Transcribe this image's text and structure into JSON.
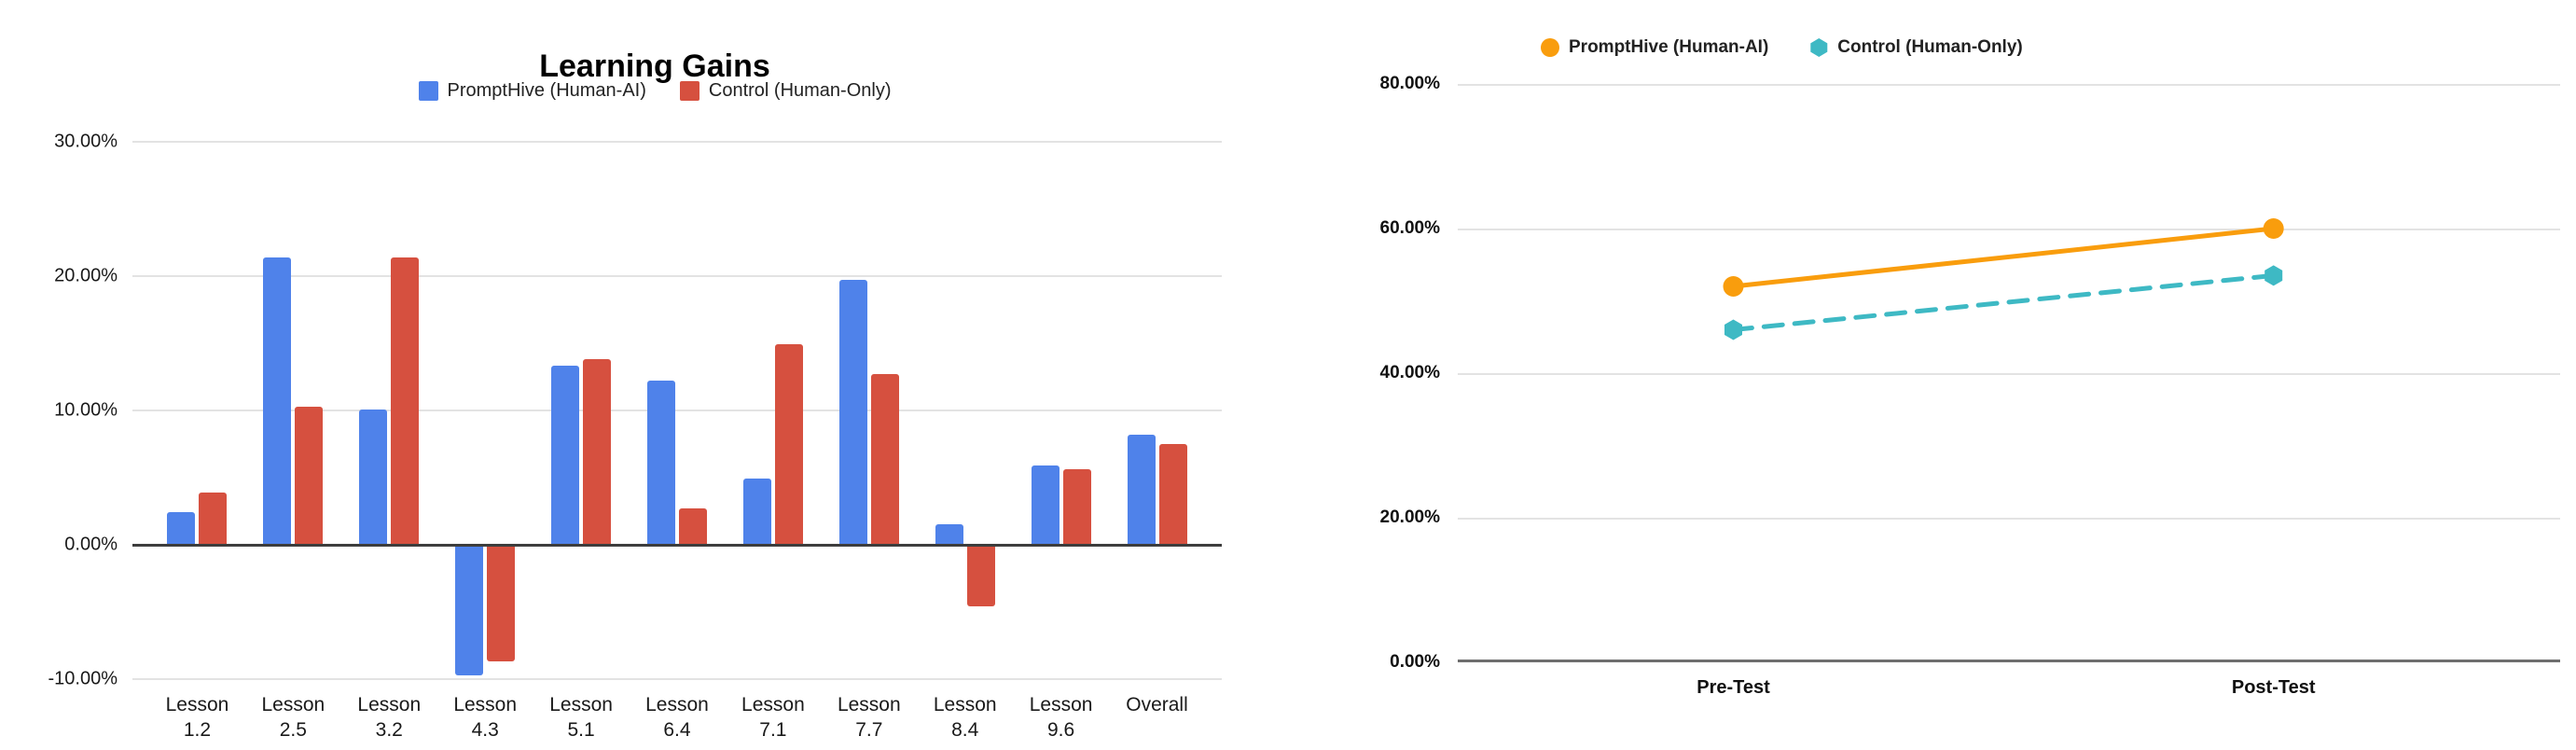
{
  "page": {
    "background": "#ffffff"
  },
  "chart_data": [
    {
      "type": "bar",
      "title": "Learning Gains",
      "legend_position": "top",
      "grid": true,
      "categories": [
        "Lesson 1.2",
        "Lesson 2.5",
        "Lesson 3.2",
        "Lesson 4.3",
        "Lesson 5.1",
        "Lesson 6.4",
        "Lesson 7.1",
        "Lesson 7.7",
        "Lesson 8.4",
        "Lesson 9.6",
        "Overall"
      ],
      "series": [
        {
          "name": "PromptHive (Human-AI)",
          "color": "#4f82ea",
          "values": [
            2.4,
            21.4,
            10.1,
            -9.7,
            13.3,
            12.2,
            4.9,
            19.7,
            1.5,
            5.9,
            8.2
          ]
        },
        {
          "name": "Control (Human-Only)",
          "color": "#d6503f",
          "values": [
            3.9,
            10.3,
            21.4,
            -8.7,
            13.8,
            2.7,
            14.9,
            12.7,
            -4.6,
            5.6,
            7.5
          ]
        }
      ],
      "ylim": [
        -10,
        30
      ],
      "y_ticks": [
        30,
        20,
        10,
        0,
        -10
      ],
      "y_tick_labels": [
        "30.00%",
        "20.00%",
        "10.00%",
        "0.00%",
        "-10.00%"
      ],
      "grid_color": "#e3e3e3",
      "zero_line_color": "#3d3d3d"
    },
    {
      "type": "line",
      "title": "",
      "legend_position": "top",
      "grid": true,
      "categories": [
        "Pre-Test",
        "Post-Test"
      ],
      "series": [
        {
          "name": "PromptHive (Human-AI)",
          "color": "#f99d0d",
          "line_style": "solid",
          "marker": "circle",
          "values": [
            52,
            60
          ]
        },
        {
          "name": "Control (Human-Only)",
          "color": "#3eb9c4",
          "line_style": "dashed",
          "marker": "hexagon",
          "values": [
            46,
            53.5
          ]
        }
      ],
      "ylim": [
        0,
        80
      ],
      "y_ticks": [
        80,
        60,
        40,
        20,
        0
      ],
      "y_tick_labels": [
        "80.00%",
        "60.00%",
        "40.00%",
        "20.00%",
        "0.00%"
      ],
      "grid_color": "#e3e3e3",
      "zero_line_color": "#6e6e6e"
    }
  ]
}
